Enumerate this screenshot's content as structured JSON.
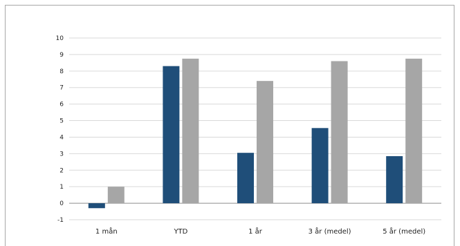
{
  "chart_data": {
    "type": "bar",
    "title": "",
    "xlabel": "",
    "ylabel": "",
    "categories": [
      "1 mån",
      "YTD",
      "1 år",
      "3 år (medel)",
      "5 år (medel)"
    ],
    "series": [
      {
        "color": "#1f4e79",
        "values": [
          -0.3,
          8.3,
          3.05,
          4.55,
          2.85
        ]
      },
      {
        "color": "#a6a6a6",
        "values": [
          1.0,
          8.75,
          7.4,
          8.6,
          8.75
        ]
      }
    ],
    "ylim": [
      -1,
      10
    ],
    "yticks": [
      "-1",
      "0",
      "1",
      "2",
      "3",
      "4",
      "5",
      "6",
      "7",
      "8",
      "9",
      "10"
    ],
    "grid": true,
    "legend": "none"
  }
}
